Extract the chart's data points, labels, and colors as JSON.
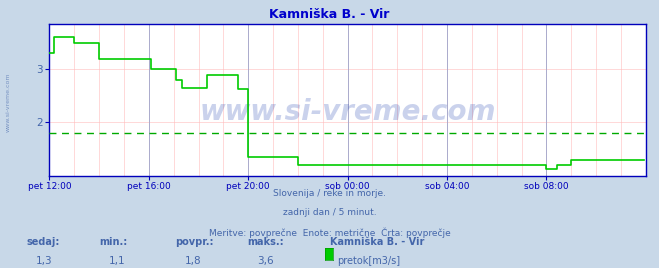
{
  "title": "Kamniška B. - Vir",
  "bg_color": "#c8d8e8",
  "plot_bg_color": "#ffffff",
  "line_color": "#00cc00",
  "avg_line_color": "#00aa00",
  "axis_color": "#0000bb",
  "grid_color_major": "#aaaacc",
  "grid_color_minor": "#ffbbbb",
  "text_color": "#4466aa",
  "title_color": "#0000cc",
  "watermark": "www.si-vreme.com",
  "footer_line1": "Slovenija / reke in morje.",
  "footer_line2": "zadnji dan / 5 minut.",
  "footer_line3": "Meritve: povprečne  Enote: metrične  Črta: povprečje",
  "stat_labels": [
    "sedaj:",
    "min.:",
    "povpr.:",
    "maks.:"
  ],
  "stat_values": [
    "1,3",
    "1,1",
    "1,8",
    "3,6"
  ],
  "legend_title": "Kamniška B. - Vir",
  "legend_label": "pretok[m3/s]",
  "legend_color": "#00cc00",
  "ylim": [
    1.0,
    3.85
  ],
  "yticks": [
    2.0,
    3.0
  ],
  "avg_value": 1.8,
  "side_label": "www.si-vreme.com",
  "x_tick_labels": [
    "pet 12:00",
    "pet 16:00",
    "pet 20:00",
    "sob 00:00",
    "sob 04:00",
    "sob 08:00"
  ],
  "x_tick_positions": [
    0,
    48,
    96,
    144,
    192,
    240
  ],
  "total_points": 288,
  "flow_data": [
    3.3,
    3.3,
    3.6,
    3.6,
    3.6,
    3.6,
    3.6,
    3.6,
    3.6,
    3.6,
    3.6,
    3.6,
    3.5,
    3.5,
    3.5,
    3.5,
    3.5,
    3.5,
    3.5,
    3.5,
    3.5,
    3.5,
    3.5,
    3.5,
    3.2,
    3.2,
    3.2,
    3.2,
    3.2,
    3.2,
    3.2,
    3.2,
    3.2,
    3.2,
    3.2,
    3.2,
    3.2,
    3.2,
    3.2,
    3.2,
    3.2,
    3.2,
    3.2,
    3.2,
    3.2,
    3.2,
    3.2,
    3.2,
    3.2,
    3.0,
    3.0,
    3.0,
    3.0,
    3.0,
    3.0,
    3.0,
    3.0,
    3.0,
    3.0,
    3.0,
    3.0,
    2.8,
    2.8,
    2.8,
    2.65,
    2.65,
    2.65,
    2.65,
    2.65,
    2.65,
    2.65,
    2.65,
    2.65,
    2.65,
    2.65,
    2.65,
    2.9,
    2.9,
    2.9,
    2.9,
    2.9,
    2.9,
    2.9,
    2.9,
    2.9,
    2.9,
    2.9,
    2.9,
    2.9,
    2.9,
    2.9,
    2.62,
    2.62,
    2.62,
    2.62,
    2.62,
    1.35,
    1.35,
    1.35,
    1.35,
    1.35,
    1.35,
    1.35,
    1.35,
    1.35,
    1.35,
    1.35,
    1.35,
    1.35,
    1.35,
    1.35,
    1.35,
    1.35,
    1.35,
    1.35,
    1.35,
    1.35,
    1.35,
    1.35,
    1.35,
    1.2,
    1.2,
    1.2,
    1.2,
    1.2,
    1.2,
    1.2,
    1.2,
    1.2,
    1.2,
    1.2,
    1.2,
    1.2,
    1.2,
    1.2,
    1.2,
    1.2,
    1.2,
    1.2,
    1.2,
    1.2,
    1.2,
    1.2,
    1.2,
    1.2,
    1.2,
    1.2,
    1.2,
    1.2,
    1.2,
    1.2,
    1.2,
    1.2,
    1.2,
    1.2,
    1.2,
    1.2,
    1.2,
    1.2,
    1.2,
    1.2,
    1.2,
    1.2,
    1.2,
    1.2,
    1.2,
    1.2,
    1.2,
    1.2,
    1.2,
    1.2,
    1.2,
    1.2,
    1.2,
    1.2,
    1.2,
    1.2,
    1.2,
    1.2,
    1.2,
    1.2,
    1.2,
    1.2,
    1.2,
    1.2,
    1.2,
    1.2,
    1.2,
    1.2,
    1.2,
    1.2,
    1.2,
    1.2,
    1.2,
    1.2,
    1.2,
    1.2,
    1.2,
    1.2,
    1.2,
    1.2,
    1.2,
    1.2,
    1.2,
    1.2,
    1.2,
    1.2,
    1.2,
    1.2,
    1.2,
    1.2,
    1.2,
    1.2,
    1.2,
    1.2,
    1.2,
    1.2,
    1.2,
    1.2,
    1.2,
    1.2,
    1.2,
    1.2,
    1.2,
    1.2,
    1.2,
    1.2,
    1.2,
    1.2,
    1.2,
    1.2,
    1.2,
    1.2,
    1.2,
    1.2,
    1.2,
    1.2,
    1.2,
    1.2,
    1.2,
    1.13,
    1.13,
    1.13,
    1.13,
    1.13,
    1.2,
    1.2,
    1.2,
    1.2,
    1.2,
    1.2,
    1.2,
    1.3,
    1.3,
    1.3,
    1.3,
    1.3,
    1.3,
    1.3,
    1.3,
    1.3,
    1.3,
    1.3,
    1.3,
    1.3,
    1.3,
    1.3,
    1.3,
    1.3,
    1.3,
    1.3,
    1.3,
    1.3,
    1.3,
    1.3,
    1.3,
    1.3,
    1.3,
    1.3,
    1.3,
    1.3,
    1.3,
    1.3,
    1.3,
    1.3,
    1.3,
    1.3,
    1.3
  ]
}
